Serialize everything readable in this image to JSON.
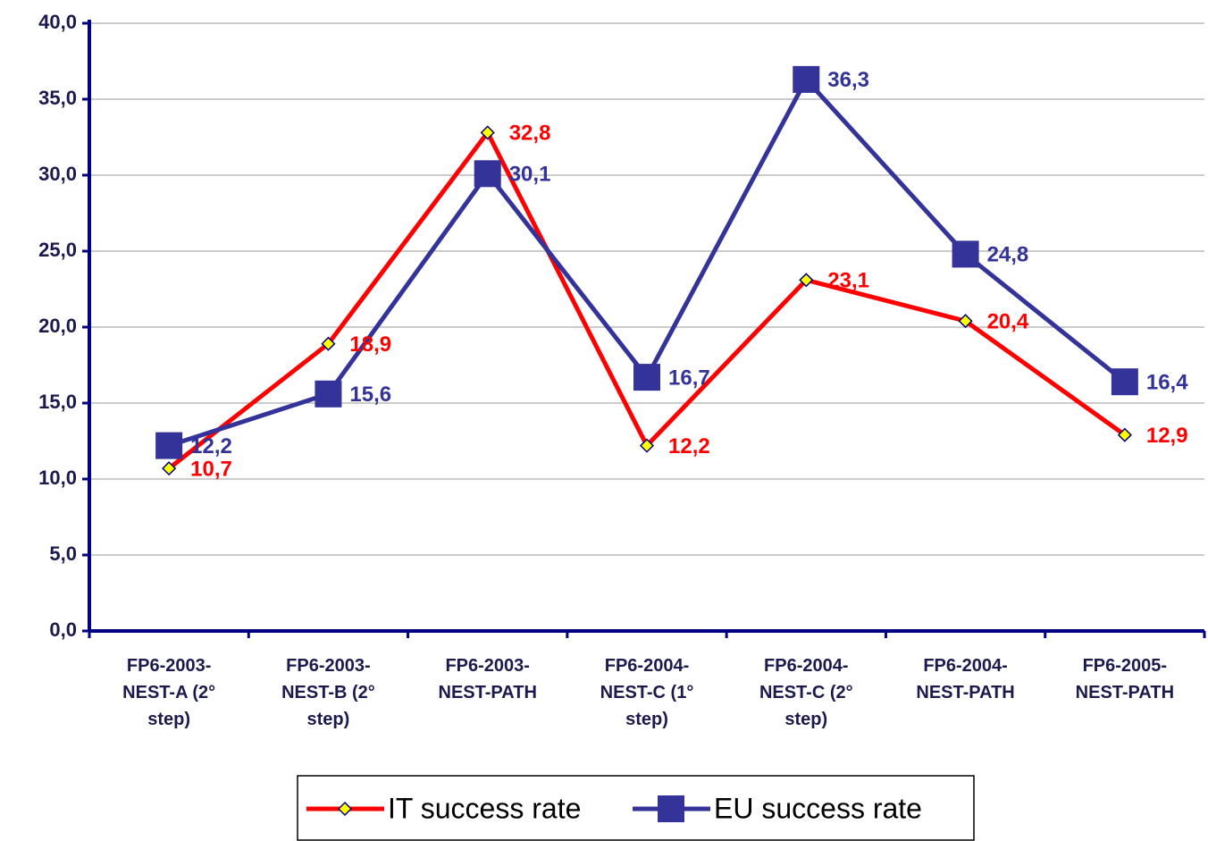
{
  "chart_data": {
    "type": "line",
    "categories": [
      "FP6-2003-\nNEST-A (2°\nstep)",
      "FP6-2003-\nNEST-B (2°\nstep)",
      "FP6-2003-\nNEST-PATH",
      "FP6-2004-\nNEST-C (1°\nstep)",
      "FP6-2004-\nNEST-C (2°\nstep)",
      "FP6-2004-\nNEST-PATH",
      "FP6-2005-\nNEST-PATH"
    ],
    "series": [
      {
        "name": "IT success rate",
        "color": "#ff0000",
        "marker": "diamond",
        "values": [
          10.7,
          18.9,
          32.8,
          12.2,
          23.1,
          20.4,
          12.9
        ],
        "value_labels": [
          "10,7",
          "18,9",
          "32,8",
          "12,2",
          "23,1",
          "20,4",
          "12,9"
        ]
      },
      {
        "name": "EU success rate",
        "color": "#333399",
        "marker": "square",
        "values": [
          12.2,
          15.6,
          30.1,
          16.7,
          36.3,
          24.8,
          16.4
        ],
        "value_labels": [
          "12,2",
          "15,6",
          "30,1",
          "16,7",
          "36,3",
          "24,8",
          "16,4"
        ]
      }
    ],
    "ylim": [
      0,
      40
    ],
    "yticks": [
      {
        "value": 0,
        "label": "0,0"
      },
      {
        "value": 5,
        "label": "5,0"
      },
      {
        "value": 10,
        "label": "10,0"
      },
      {
        "value": 15,
        "label": "15,0"
      },
      {
        "value": 20,
        "label": "20,0"
      },
      {
        "value": 25,
        "label": "25,0"
      },
      {
        "value": 30,
        "label": "30,0"
      },
      {
        "value": 35,
        "label": "35,0"
      },
      {
        "value": 40,
        "label": "40,0"
      }
    ],
    "grid": true,
    "legend": "bottom"
  }
}
